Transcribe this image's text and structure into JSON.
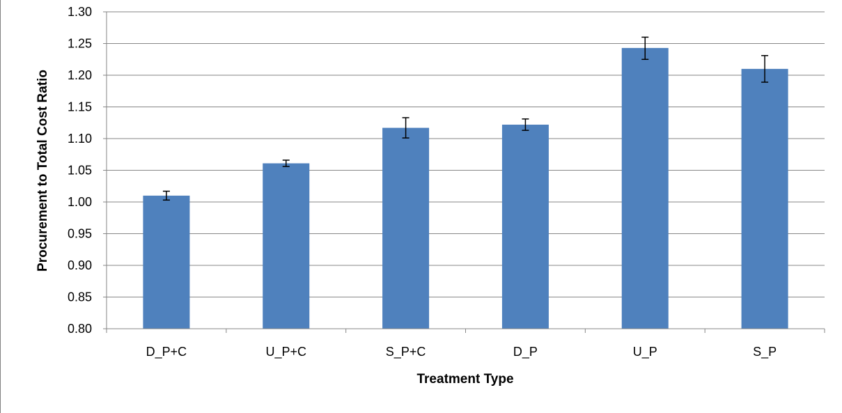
{
  "chart_data": {
    "type": "bar",
    "title": "",
    "xlabel": "Treatment Type",
    "ylabel": "Procurement to Total Cost Ratio",
    "categories": [
      "D_P+C",
      "U_P+C",
      "S_P+C",
      "D_P",
      "U_P",
      "S_P"
    ],
    "values": [
      1.01,
      1.061,
      1.117,
      1.122,
      1.243,
      1.21
    ],
    "error_low": [
      1.003,
      1.056,
      1.101,
      1.113,
      1.225,
      1.189
    ],
    "error_high": [
      1.017,
      1.066,
      1.133,
      1.131,
      1.26,
      1.231
    ],
    "ylim": [
      0.8,
      1.3
    ],
    "ytick_labels": [
      "0.80",
      "0.85",
      "0.90",
      "0.95",
      "1.00",
      "1.05",
      "1.10",
      "1.15",
      "1.20",
      "1.25",
      "1.30"
    ],
    "grid": true,
    "legend": "none",
    "bar_color": "#4f81bd",
    "grid_color": "#868686"
  }
}
